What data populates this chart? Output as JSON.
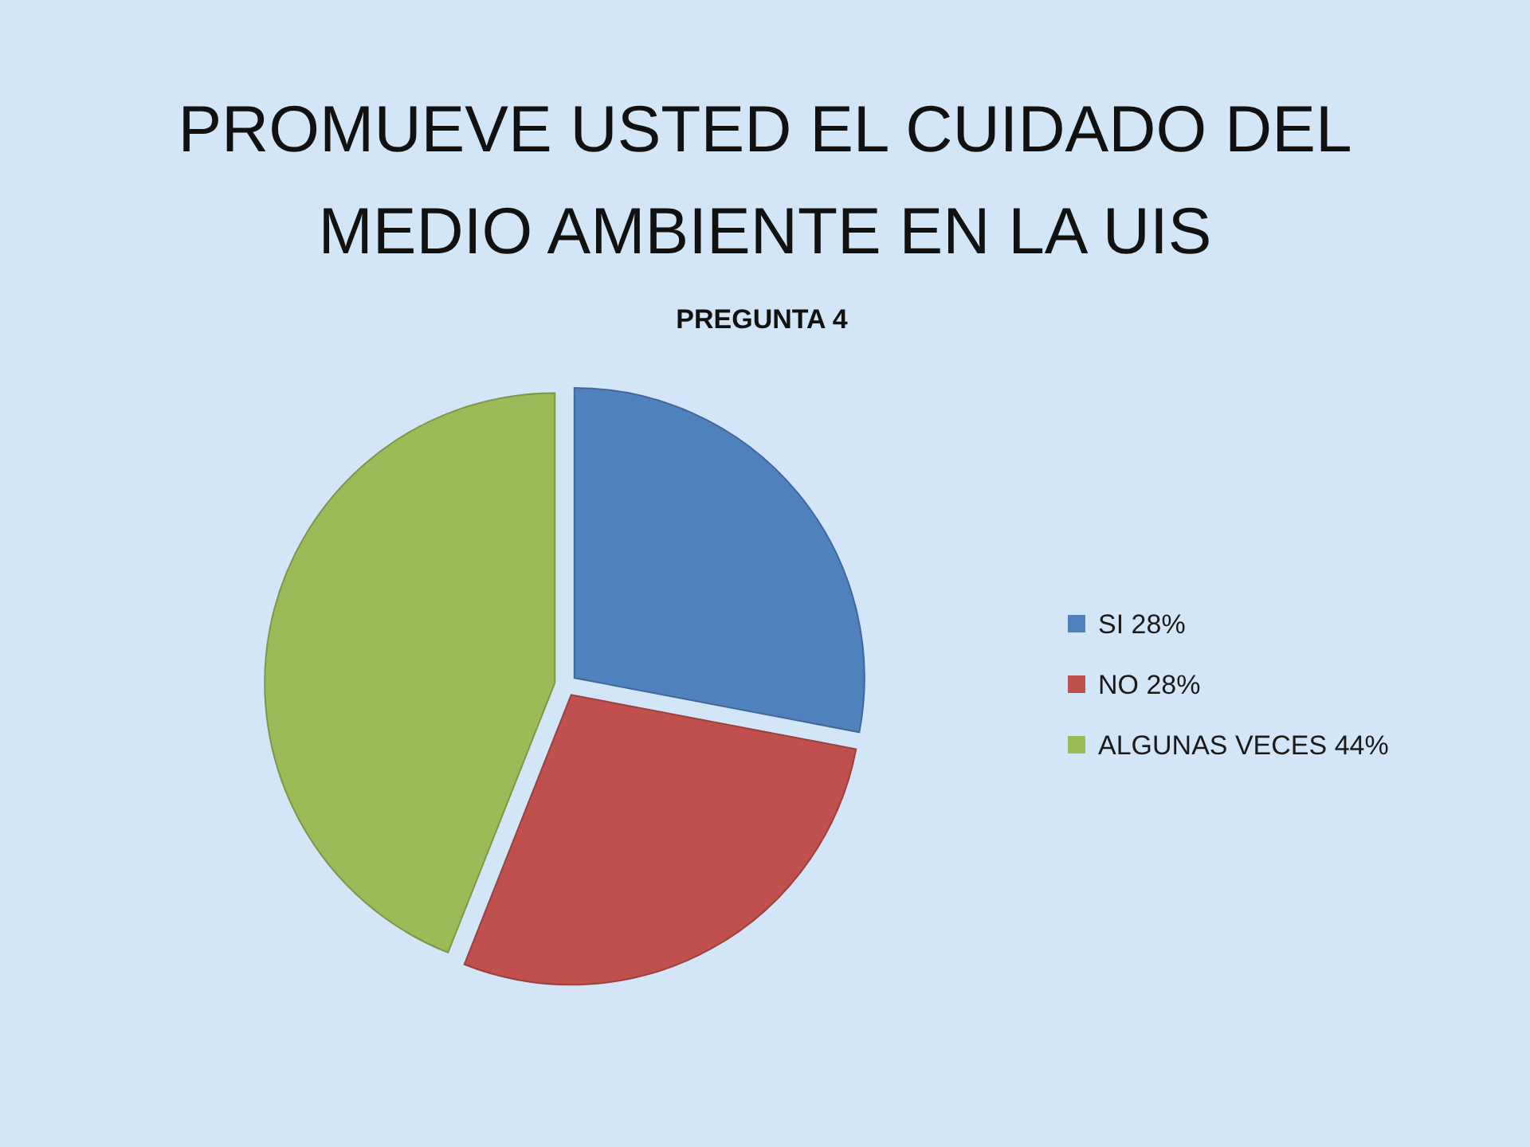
{
  "chart_data": {
    "type": "pie",
    "title": "PROMUEVE USTED EL CUIDADO DEL MEDIO AMBIENTE EN LA UIS",
    "subtitle": "PREGUNTA 4",
    "categories": [
      "SI 28%",
      "NO 28%",
      "ALGUNAS VECES 44%"
    ],
    "values": [
      28,
      28,
      44
    ],
    "colors": [
      "#4f81bd",
      "#c0504d",
      "#9bbb59"
    ],
    "legend": "right"
  }
}
